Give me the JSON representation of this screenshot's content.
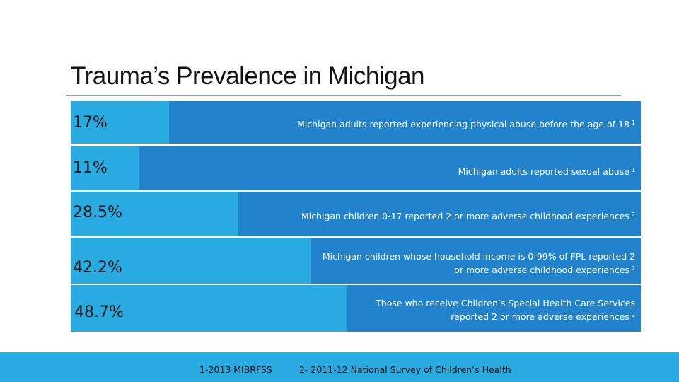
{
  "title": "Trauma’s Prevalence in Michigan",
  "rows": [
    {
      "percent": "17%",
      "text": "Michigan adults reported experiencing physical abuse before the age of 18",
      "ref": "1",
      "value": 17
    },
    {
      "percent": "11%",
      "text": "Michigan adults reported sexual abuse",
      "ref": "1",
      "value": 11
    },
    {
      "percent": "28.5%",
      "text": "Michigan children 0-17 reported 2 or more adverse childhood experiences",
      "ref": "2",
      "value": 28.5
    },
    {
      "percent": "42.2%",
      "text_line1": "Michigan children whose household income is 0-99% of FPL reported 2",
      "text_line2": "or more adverse childhood experiences",
      "ref": "2",
      "value": 42.2
    },
    {
      "percent": "48.7%",
      "text_line1": "Those who receive Children’s Special Health Care Services",
      "text_line2": "reported 2 or more adverse experiences",
      "ref": "2",
      "value": 48.7
    }
  ],
  "footer": {
    "source1": "1-2013 MIBRFSS",
    "source2": "2- 2011-12 National Survey of Children’s Health"
  },
  "colors": {
    "light_blue": "#29abe2",
    "dark_blue": "#2382cc"
  }
}
